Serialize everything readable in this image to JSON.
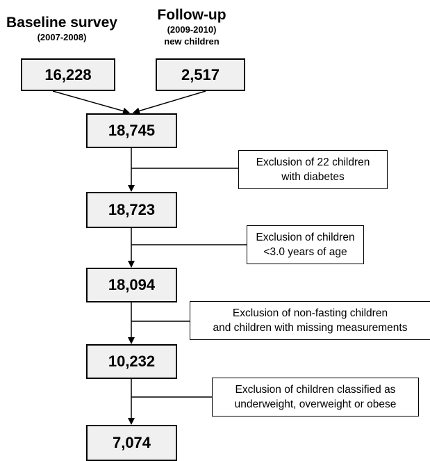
{
  "headers": {
    "baseline": {
      "title": "Baseline survey",
      "years": "(2007-2008)"
    },
    "followup": {
      "title": "Follow-up",
      "years": "(2009-2010)",
      "note": "new children"
    }
  },
  "boxes": {
    "baseline": "16,228",
    "followup": "2,517",
    "combined": "18,745",
    "after_diabetes": "18,723",
    "after_age": "18,094",
    "after_fasting": "10,232",
    "final": "7,074"
  },
  "exclusions": {
    "diabetes": [
      "Exclusion of 22 children",
      "with diabetes"
    ],
    "age": [
      "Exclusion of children",
      "<3.0 years of age"
    ],
    "fasting": [
      "Exclusion of non-fasting children",
      "and children with missing measurements"
    ],
    "weight": [
      "Exclusion of children classified as",
      "underweight, overweight or obese"
    ]
  }
}
